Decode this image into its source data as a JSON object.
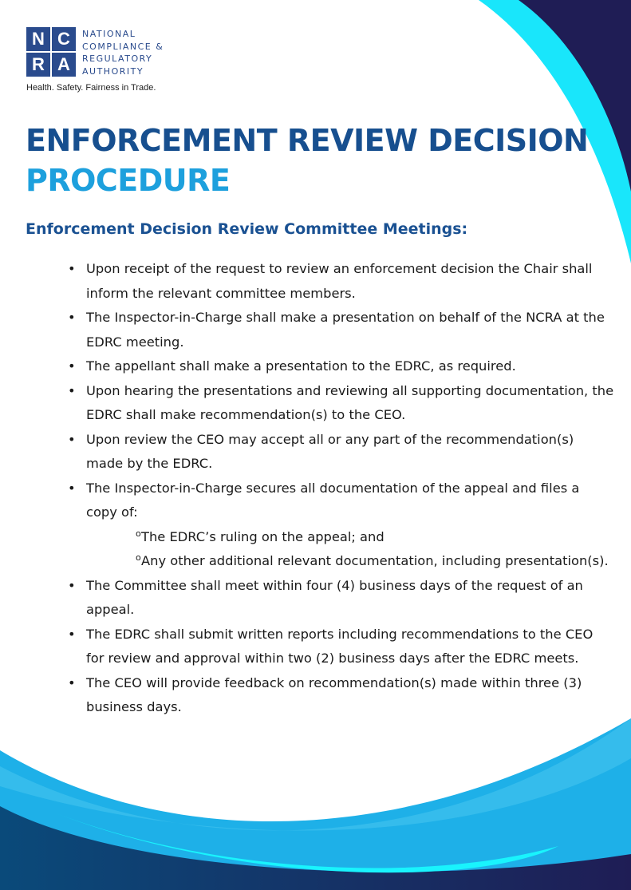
{
  "logo": {
    "letters": [
      "N",
      "C",
      "R",
      "A"
    ],
    "name_lines": [
      "NATIONAL",
      "COMPLIANCE &",
      "REGULATORY",
      "AUTHORITY"
    ],
    "tagline": "Health. Safety. Fairness in Trade."
  },
  "title": {
    "line1": "ENFORCEMENT REVIEW DECISION",
    "line2": "PROCEDURE"
  },
  "heading": "Enforcement Decision Review Committee Meetings:",
  "items": [
    {
      "type": "bullet",
      "text": "Upon receipt of the request to review an enforcement decision the Chair shall inform the relevant committee members."
    },
    {
      "type": "bullet",
      "text": "The Inspector-in-Charge shall make a presentation on behalf of the NCRA at the EDRC meeting."
    },
    {
      "type": "bullet",
      "text": "The appellant shall make a presentation to the EDRC, as required."
    },
    {
      "type": "bullet",
      "text": "Upon hearing the presentations and reviewing all supporting documentation, the EDRC shall make recommendation(s) to the CEO."
    },
    {
      "type": "bullet",
      "text": "Upon review the CEO may accept all or any part of the recommendation(s) made by the EDRC."
    },
    {
      "type": "bullet",
      "text": "The Inspector-in-Charge secures all documentation of the appeal and files a copy of:"
    },
    {
      "type": "sub",
      "text": "The EDRC’s  ruling on the appeal; and"
    },
    {
      "type": "sub",
      "text": "Any other additional relevant documentation, including presentation(s)."
    },
    {
      "type": "bullet",
      "text": "The Committee shall meet within four (4) business days of the request of an appeal."
    },
    {
      "type": "bullet",
      "text": "The EDRC shall submit written reports including recommendations to the CEO for review and approval within two (2) business days after the EDRC meets."
    },
    {
      "type": "bullet",
      "text": "The CEO will provide feedback on recommendation(s) made within three (3) business days."
    }
  ],
  "colors": {
    "navy": "#1f1d55",
    "cyan": "#19f4fd",
    "sky": "#1eb0e8",
    "title_blue": "#174f8f",
    "accent": "#1da0dd"
  }
}
